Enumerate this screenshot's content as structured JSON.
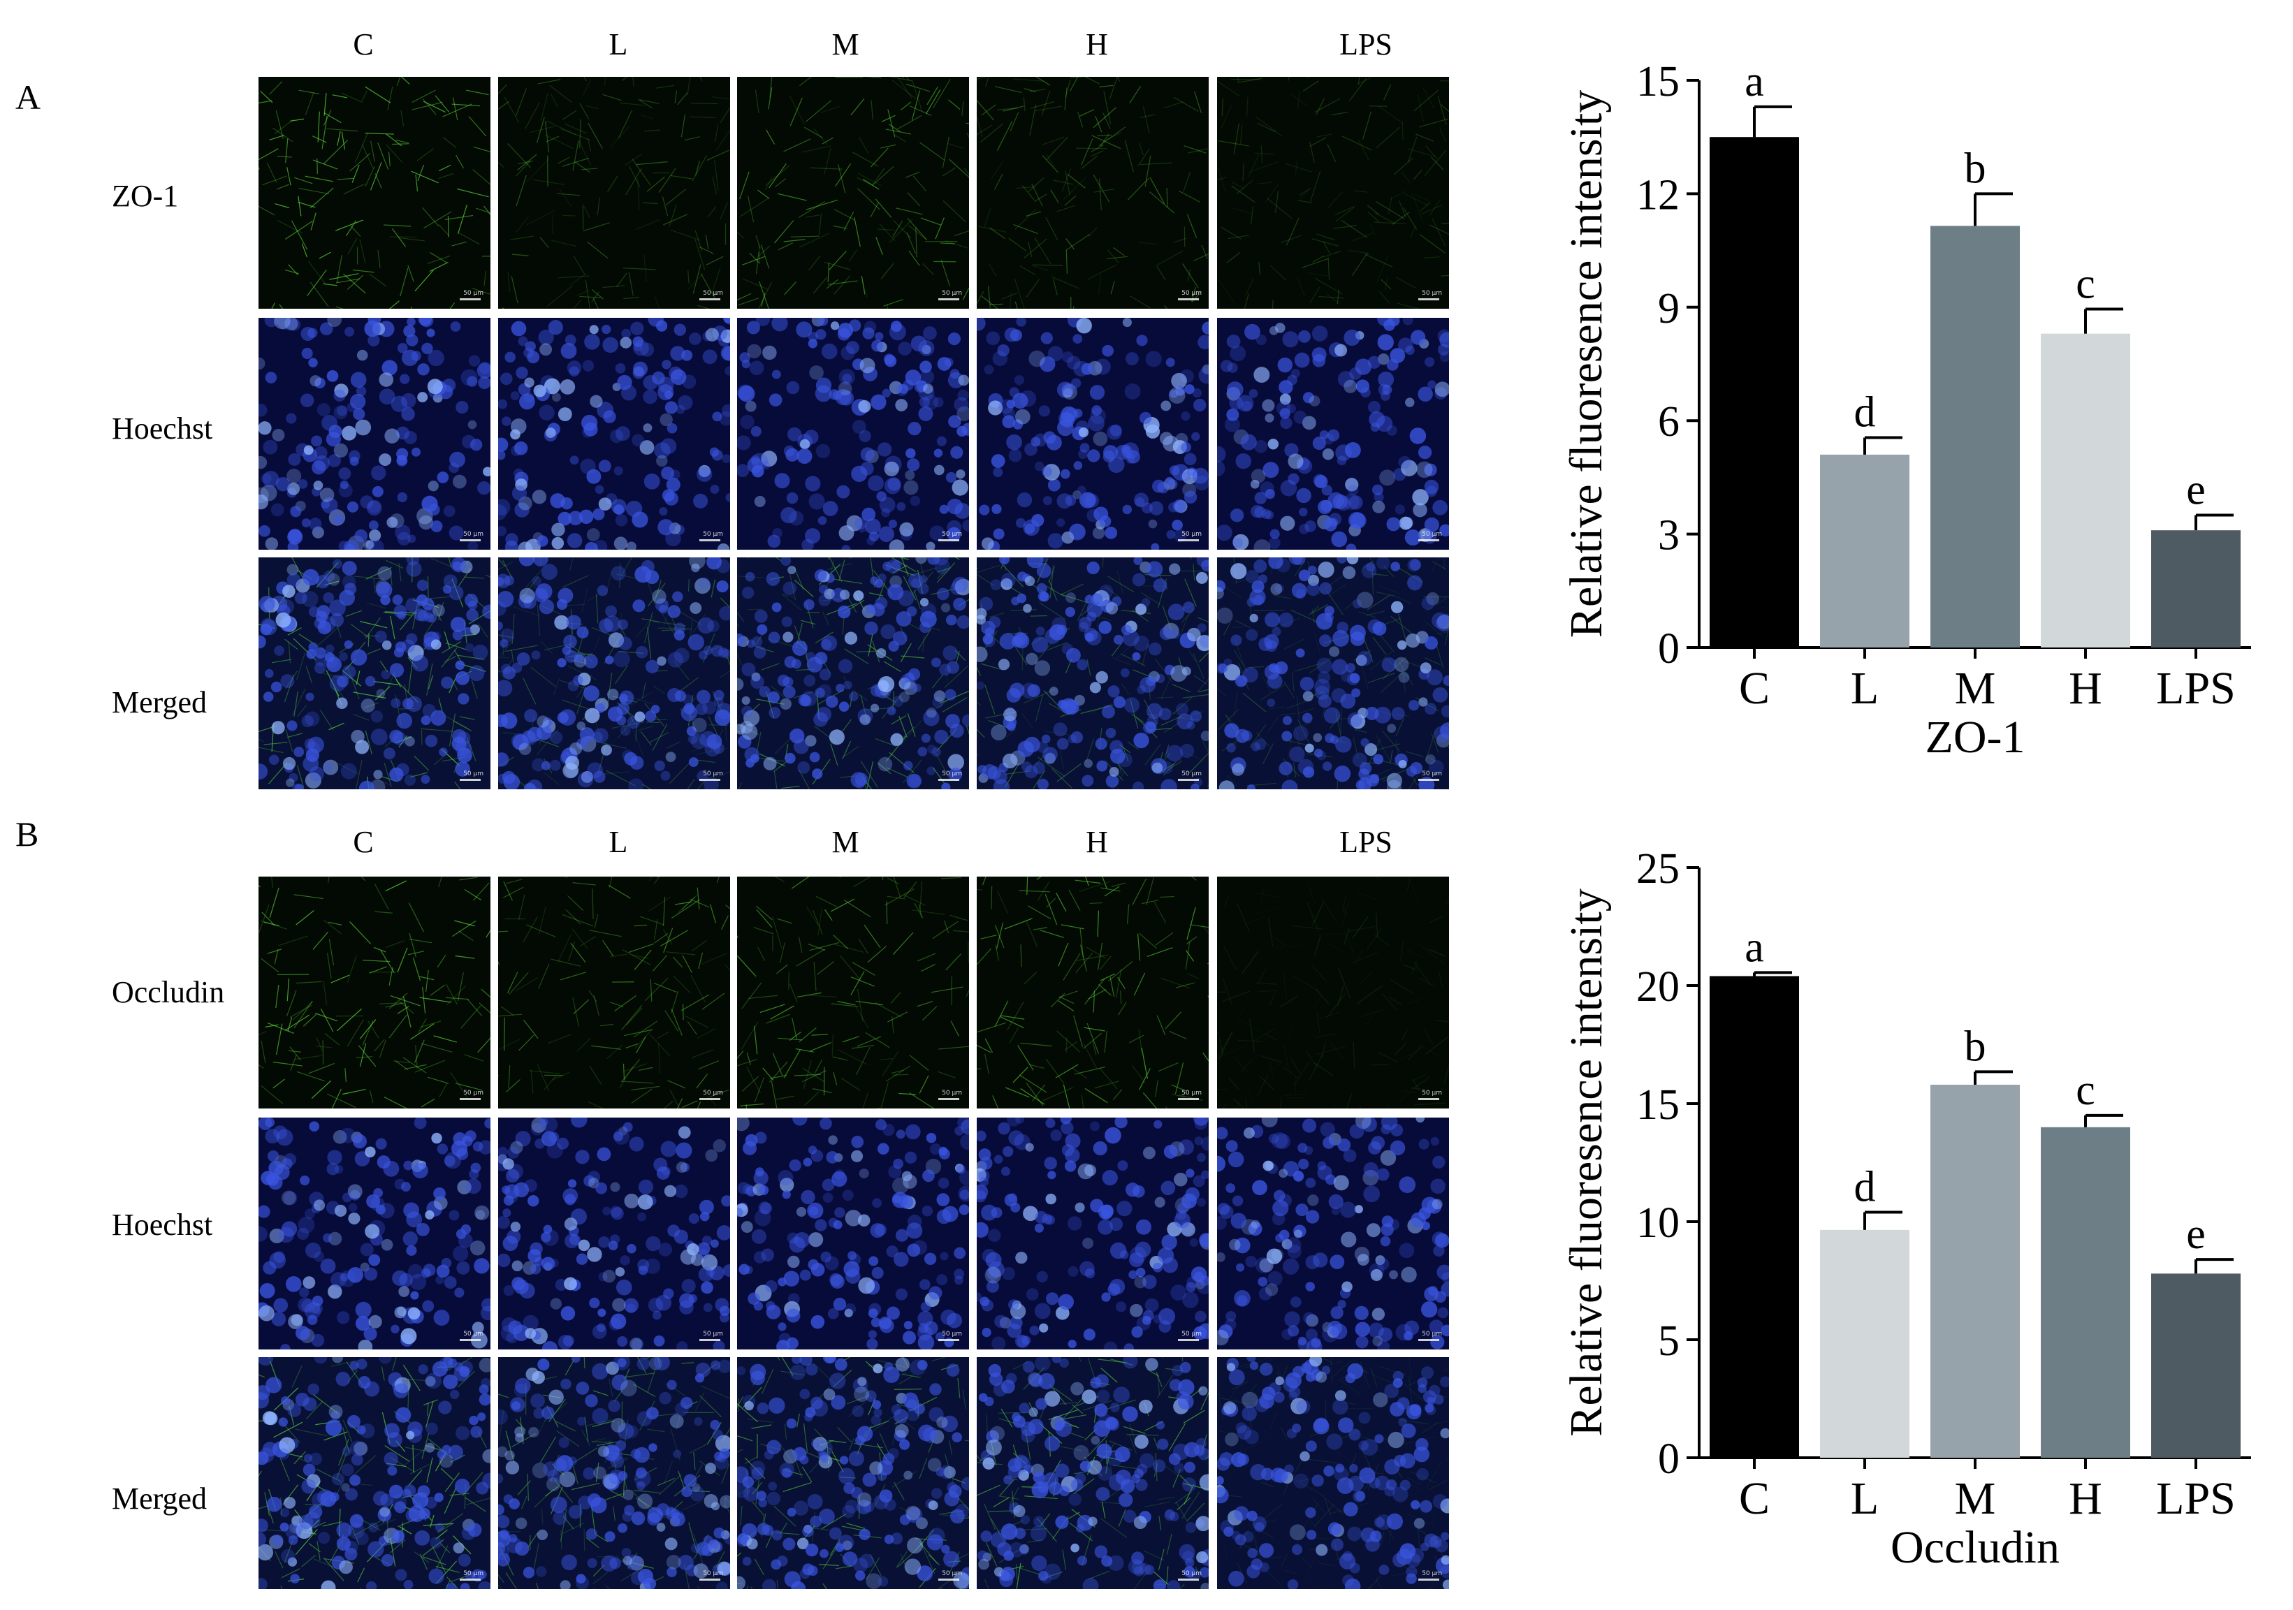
{
  "panels": [
    {
      "letter": "A",
      "columns": [
        "C",
        "L",
        "M",
        "H",
        "LPS"
      ],
      "rows": [
        "ZO-1",
        "Hoechst",
        "Merged"
      ],
      "scale_text": "50 μm"
    },
    {
      "letter": "B",
      "columns": [
        "C",
        "L",
        "M",
        "H",
        "LPS"
      ],
      "rows": [
        "Occludin",
        "Hoechst",
        "Merged"
      ],
      "scale_text": "50 μm"
    }
  ],
  "chart_data": [
    {
      "type": "bar",
      "title": "",
      "xlabel": "ZO-1",
      "ylabel": "Relative fluoresence intensity",
      "categories": [
        "C",
        "L",
        "M",
        "H",
        "LPS"
      ],
      "values": [
        13.5,
        5.1,
        11.15,
        8.3,
        3.1
      ],
      "errors": [
        0.8,
        0.45,
        0.85,
        0.65,
        0.4
      ],
      "letters": [
        "a",
        "d",
        "b",
        "c",
        "e"
      ],
      "colors": [
        "#000000",
        "#97a3ab",
        "#6e7e86",
        "#d2d8d9",
        "#4f5b63"
      ],
      "ylim": [
        0,
        15
      ],
      "yticks": [
        "0",
        "3",
        "6",
        "9",
        "12",
        "15"
      ],
      "grid": false
    },
    {
      "type": "bar",
      "title": "",
      "xlabel": "Occludin",
      "ylabel": "Relative fluoresence intensity",
      "categories": [
        "C",
        "L",
        "M",
        "H",
        "LPS"
      ],
      "values": [
        20.4,
        9.65,
        15.8,
        14.0,
        7.8
      ],
      "errors": [
        0.15,
        0.75,
        0.55,
        0.5,
        0.6
      ],
      "letters": [
        "a",
        "d",
        "b",
        "c",
        "e"
      ],
      "colors": [
        "#000000",
        "#d2d8d9",
        "#97a3ab",
        "#6e7e86",
        "#4f5b63"
      ],
      "ylim": [
        0,
        25
      ],
      "yticks": [
        "0",
        "5",
        "10",
        "15",
        "20",
        "25"
      ],
      "grid": false
    }
  ]
}
